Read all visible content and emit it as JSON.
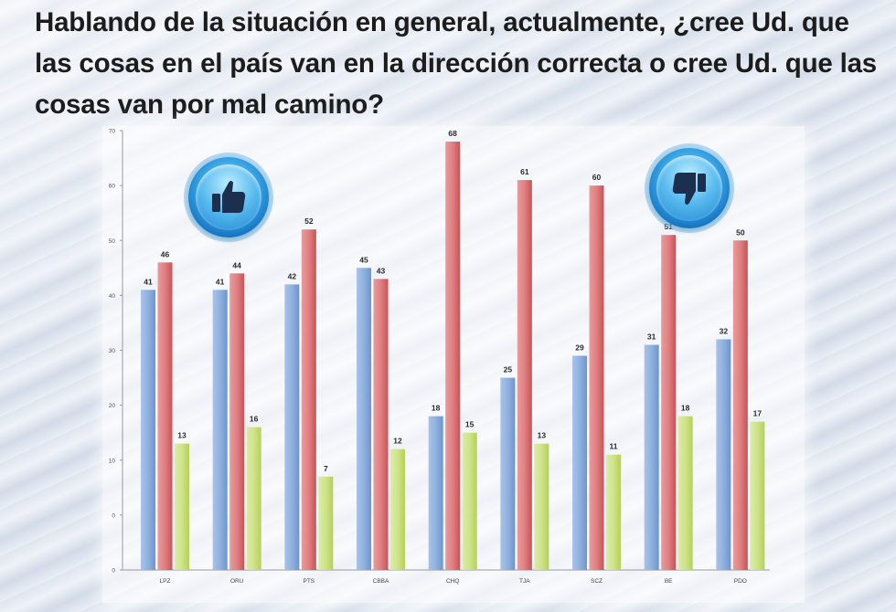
{
  "title": "Hablando de la situación en general, actualmente, ¿cree Ud. que las cosas en el país van en la dirección correcta o cree Ud. que las cosas van por mal camino?",
  "icons": {
    "left": "thumbs-up-icon",
    "right": "thumbs-down-icon"
  },
  "colors": {
    "blue": "#7fa6d8",
    "red": "#d9666a",
    "green": "#c6de6e"
  },
  "chart_data": {
    "type": "bar",
    "categories": [
      "LPZ",
      "ORU",
      "PTS",
      "CBBA",
      "CHQ",
      "TJA",
      "SCZ",
      "BE",
      "PDO"
    ],
    "series": [
      {
        "values": [
          41,
          41,
          42,
          45,
          18,
          25,
          29,
          31,
          32
        ]
      },
      {
        "values": [
          46,
          44,
          52,
          43,
          68,
          61,
          60,
          51,
          50
        ]
      },
      {
        "values": [
          13,
          16,
          7,
          12,
          15,
          13,
          11,
          18,
          17
        ]
      }
    ],
    "y_ticks": [
      "70",
      "60",
      "50",
      "40",
      "30",
      "20",
      "10",
      "0",
      "0"
    ],
    "ylim": [
      -10,
      70
    ],
    "grid": false
  }
}
